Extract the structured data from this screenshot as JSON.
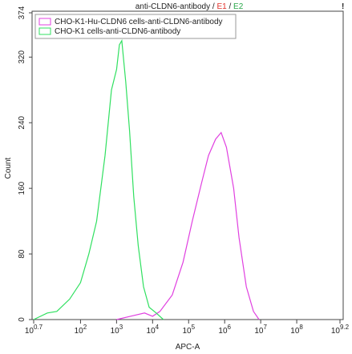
{
  "chart_data": {
    "type": "line",
    "title": "anti-CLDN6-antibody",
    "title_separator": "/",
    "gates": [
      {
        "name": "E1",
        "color": "#e0302a"
      },
      {
        "name": "E2",
        "color": "#2aa84a"
      }
    ],
    "status_mark": "!",
    "x_label": "APC-A",
    "y_label": "Count",
    "xscale": "log",
    "xlim": [
      5.012,
      1584893192
    ],
    "xticks": [
      {
        "value": 5.012,
        "label": "10",
        "exponent": "0.7"
      },
      {
        "value": 100,
        "label": "10",
        "exponent": "2"
      },
      {
        "value": 1000,
        "label": "10",
        "exponent": "3"
      },
      {
        "value": 10000,
        "label": "10",
        "exponent": "4"
      },
      {
        "value": 100000,
        "label": "10",
        "exponent": "5"
      },
      {
        "value": 1000000,
        "label": "10",
        "exponent": "6"
      },
      {
        "value": 10000000,
        "label": "10",
        "exponent": "7"
      },
      {
        "value": 100000000,
        "label": "10",
        "exponent": "8"
      },
      {
        "value": 1584893192,
        "label": "10",
        "exponent": "9.2"
      }
    ],
    "ylim": [
      0,
      374
    ],
    "yticks": [
      0,
      80,
      160,
      240,
      320,
      374
    ],
    "legend": "top-left",
    "series": [
      {
        "name": "CHO-K1-Hu-CLDN6 cells-anti-CLDN6-antibody",
        "color": "#e040e0",
        "x": [
          1000,
          3000,
          6000,
          10000,
          16000,
          35000,
          70000,
          126000,
          224000,
          355000,
          560000,
          800000,
          1120000,
          1780000,
          2500000,
          4000000,
          6300000,
          9000000
        ],
        "values": [
          0,
          5,
          8,
          4,
          10,
          30,
          70,
          120,
          165,
          200,
          220,
          228,
          210,
          160,
          100,
          40,
          10,
          0
        ]
      },
      {
        "name": "CHO-K1 cells-anti-CLDN6-antibody",
        "color": "#30e060",
        "x": [
          5,
          12,
          22,
          50,
          100,
          170,
          280,
          480,
          720,
          1000,
          1200,
          1400,
          1800,
          2300,
          3000,
          4000,
          5600,
          8000,
          12600,
          20000
        ],
        "values": [
          0,
          8,
          10,
          25,
          45,
          80,
          120,
          200,
          280,
          305,
          335,
          340,
          290,
          230,
          150,
          90,
          40,
          15,
          8,
          0
        ]
      }
    ]
  }
}
